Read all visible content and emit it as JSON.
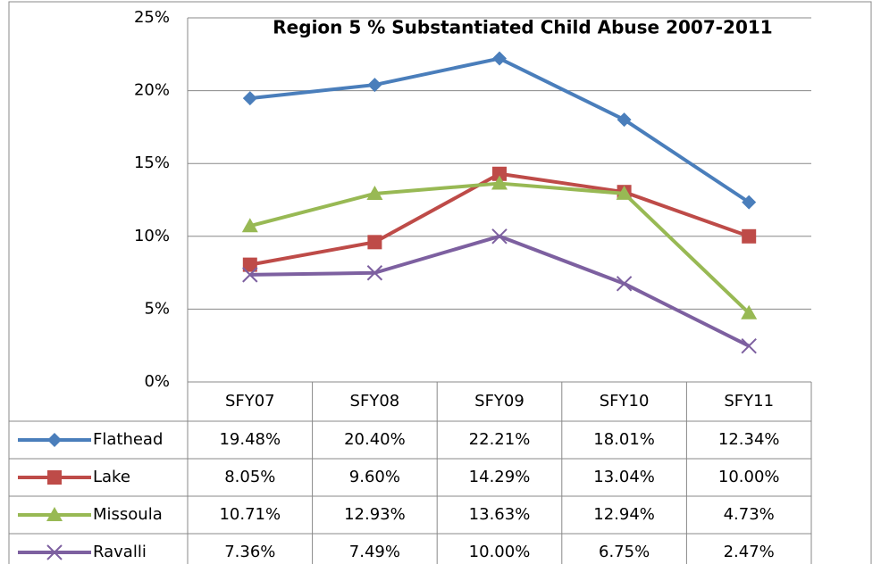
{
  "chart_data": {
    "type": "line",
    "title": "Region 5  % Substantiated Child Abuse 2007-2011",
    "categories": [
      "SFY07",
      "SFY08",
      "SFY09",
      "SFY10",
      "SFY11"
    ],
    "series": [
      {
        "name": "Flathead",
        "color": "#4a7ebb",
        "marker": "diamond",
        "values": [
          19.48,
          20.4,
          22.21,
          18.01,
          12.34
        ],
        "value_labels": [
          "19.48%",
          "20.40%",
          "22.21%",
          "18.01%",
          "12.34%"
        ]
      },
      {
        "name": "Lake",
        "color": "#be4b48",
        "marker": "square",
        "values": [
          8.05,
          9.6,
          14.29,
          13.04,
          10.0
        ],
        "value_labels": [
          "8.05%",
          "9.60%",
          "14.29%",
          "13.04%",
          "10.00%"
        ]
      },
      {
        "name": "Missoula",
        "color": "#98b954",
        "marker": "triangle",
        "values": [
          10.71,
          12.93,
          13.63,
          12.94,
          4.73
        ],
        "value_labels": [
          "10.71%",
          "12.93%",
          "13.63%",
          "12.94%",
          "4.73%"
        ]
      },
      {
        "name": "Ravalli",
        "color": "#7d60a0",
        "marker": "x",
        "values": [
          7.36,
          7.49,
          10.0,
          6.75,
          2.47
        ],
        "value_labels": [
          "7.36%",
          "7.49%",
          "10.00%",
          "6.75%",
          "2.47%"
        ]
      }
    ],
    "ylim": [
      0,
      25
    ],
    "yticks": [
      {
        "value": 0,
        "label": "0%"
      },
      {
        "value": 5,
        "label": "5%"
      },
      {
        "value": 10,
        "label": "10%"
      },
      {
        "value": 15,
        "label": "15%"
      },
      {
        "value": 20,
        "label": "20%"
      },
      {
        "value": 25,
        "label": "25%"
      }
    ],
    "grid": true
  }
}
